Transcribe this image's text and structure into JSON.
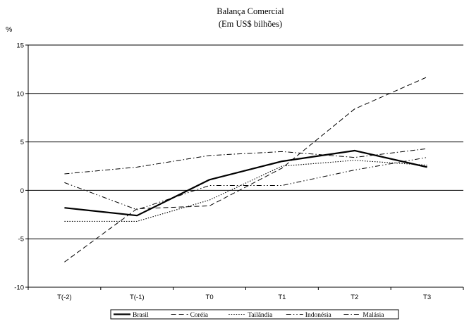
{
  "chart_data": {
    "type": "line",
    "title": "Balança Comercial",
    "subtitle": "(Em US$ bilhões)",
    "ylabel": "%",
    "xlabel": "",
    "categories": [
      "T(-2)",
      "T(-1)",
      "T0",
      "T1",
      "T2",
      "T3"
    ],
    "ylim": [
      -10,
      15
    ],
    "yticks": [
      -10,
      -5,
      0,
      5,
      10,
      15
    ],
    "grid": "horizontal",
    "legend_position": "bottom",
    "series": [
      {
        "name": "Brasil",
        "style": "solid-thick",
        "values": [
          -1.8,
          -2.6,
          1.1,
          3.0,
          4.1,
          2.4
        ]
      },
      {
        "name": "Coréia",
        "style": "dashed",
        "values": [
          -7.4,
          -1.9,
          -1.6,
          2.3,
          8.4,
          11.7
        ]
      },
      {
        "name": "Tailândia",
        "style": "dotted",
        "values": [
          -3.2,
          -3.2,
          -1.0,
          2.5,
          3.1,
          2.6
        ]
      },
      {
        "name": "Indonésia",
        "style": "dash-dot-dot",
        "values": [
          0.8,
          -2.0,
          0.5,
          0.5,
          2.1,
          3.4
        ]
      },
      {
        "name": "Malásia",
        "style": "dash-dot",
        "values": [
          1.7,
          2.4,
          3.6,
          4.0,
          3.4,
          4.3
        ]
      }
    ]
  }
}
